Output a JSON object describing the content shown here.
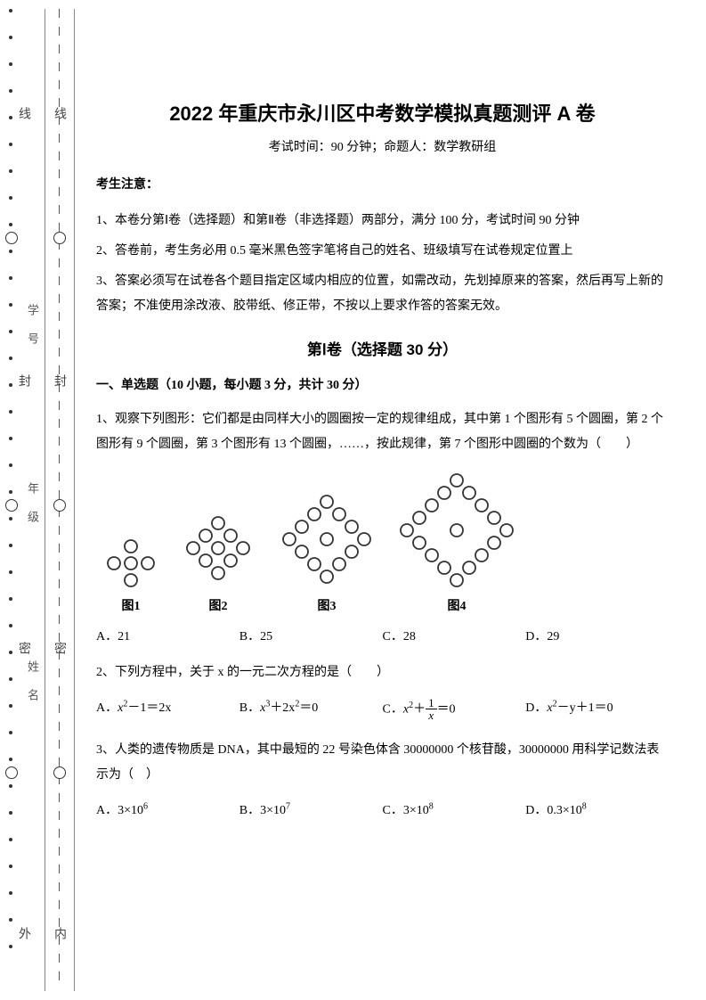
{
  "header": {
    "title": "2022 年重庆市永川区中考数学模拟真题测评 A 卷",
    "subtitle": "考试时间：90 分钟；命题人：数学教研组"
  },
  "gutter": {
    "outer_top": "线",
    "outer_mid": "封",
    "outer_bot": "密",
    "outer_bottom_char": "外",
    "inner_top": "线",
    "inner_mid": "封",
    "inner_bot": "密",
    "inner_bottom_char": "内",
    "field1": "学 号",
    "field2": "年 级",
    "field3": "姓 名"
  },
  "notices": {
    "head": "考生注意：",
    "n1": "1、本卷分第Ⅰ卷（选择题）和第Ⅱ卷（非选择题）两部分，满分 100 分，考试时间 90 分钟",
    "n2": "2、答卷前，考生务必用 0.5 毫米黑色签字笔将自己的姓名、班级填写在试卷规定位置上",
    "n3": "3、答案必须写在试卷各个题目指定区域内相应的位置，如需改动，先划掉原来的答案，然后再写上新的答案；不准使用涂改液、胶带纸、修正带，不按以上要求作答的答案无效。"
  },
  "section": "第Ⅰ卷（选择题  30 分）",
  "subhead": "一、单选题（10 小题，每小题 3 分，共计 30 分）",
  "q1": {
    "text": "1、观察下列图形：它们都是由同样大小的圆圈按一定的规律组成，其中第 1 个图形有 5 个圆圈，第 2 个图形有 9 个圆圈，第 3 个图形有 13 个圆圈，……，按此规律，第 7 个图形中圆圈的个数为（　　）",
    "figs": {
      "f1": "图1",
      "f2": "图2",
      "f3": "图3",
      "f4": "图4"
    },
    "opts": {
      "a": "A．21",
      "b": "B．25",
      "c": "C．28",
      "d": "D．29"
    }
  },
  "q2": {
    "text": "2、下列方程中，关于 x 的一元二次方程的是（　　）",
    "opts": {
      "a_pre": "A．",
      "a_body": "x",
      "a_exp": "2",
      "a_post": "－1＝2x",
      "b_pre": "B．",
      "b_body": "x",
      "b_exp": "3",
      "b_mid": "＋2x",
      "b_exp2": "2",
      "b_post": "＝0",
      "c_pre": "C．",
      "c_body": "x",
      "c_exp": "2",
      "c_mid": "＋",
      "c_num": "1",
      "c_den": "x",
      "c_post": "＝0",
      "d_pre": "D．",
      "d_body": "x",
      "d_exp": "2",
      "d_post": "－y＋1＝0"
    }
  },
  "q3": {
    "text": "3、人类的遗传物质是 DNA，其中最短的 22 号染色体含 30000000 个核苷酸，30000000 用科学记数法表示为（　）",
    "opts": {
      "a_pre": "A．3×10",
      "a_exp": "6",
      "b_pre": "B．3×10",
      "b_exp": "7",
      "c_pre": "C．3×10",
      "c_exp": "8",
      "d_pre": "D．0.3×10",
      "d_exp": "8"
    }
  },
  "colors": {
    "circle_stroke": "#333333",
    "text": "#000000"
  }
}
